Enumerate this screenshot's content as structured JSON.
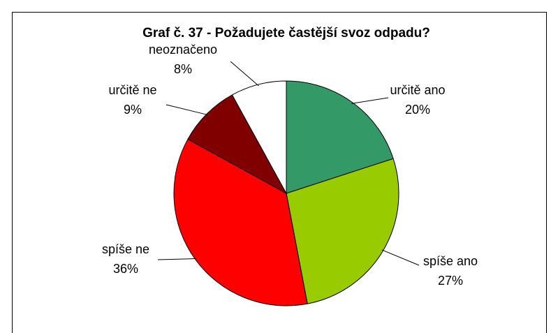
{
  "chart_data": {
    "type": "pie",
    "title": "Graf č. 37 - Požadujete častější svoz odpadu?",
    "categories": [
      "určitě ano",
      "spíše ano",
      "spíše ne",
      "určitě ne",
      "neoznačeno"
    ],
    "values": [
      20,
      27,
      36,
      9,
      8
    ],
    "value_labels": [
      "20%",
      "27%",
      "36%",
      "9%",
      "8%"
    ],
    "colors": [
      "#339966",
      "#99cc00",
      "#ff0000",
      "#800000",
      "#ffffff"
    ]
  }
}
